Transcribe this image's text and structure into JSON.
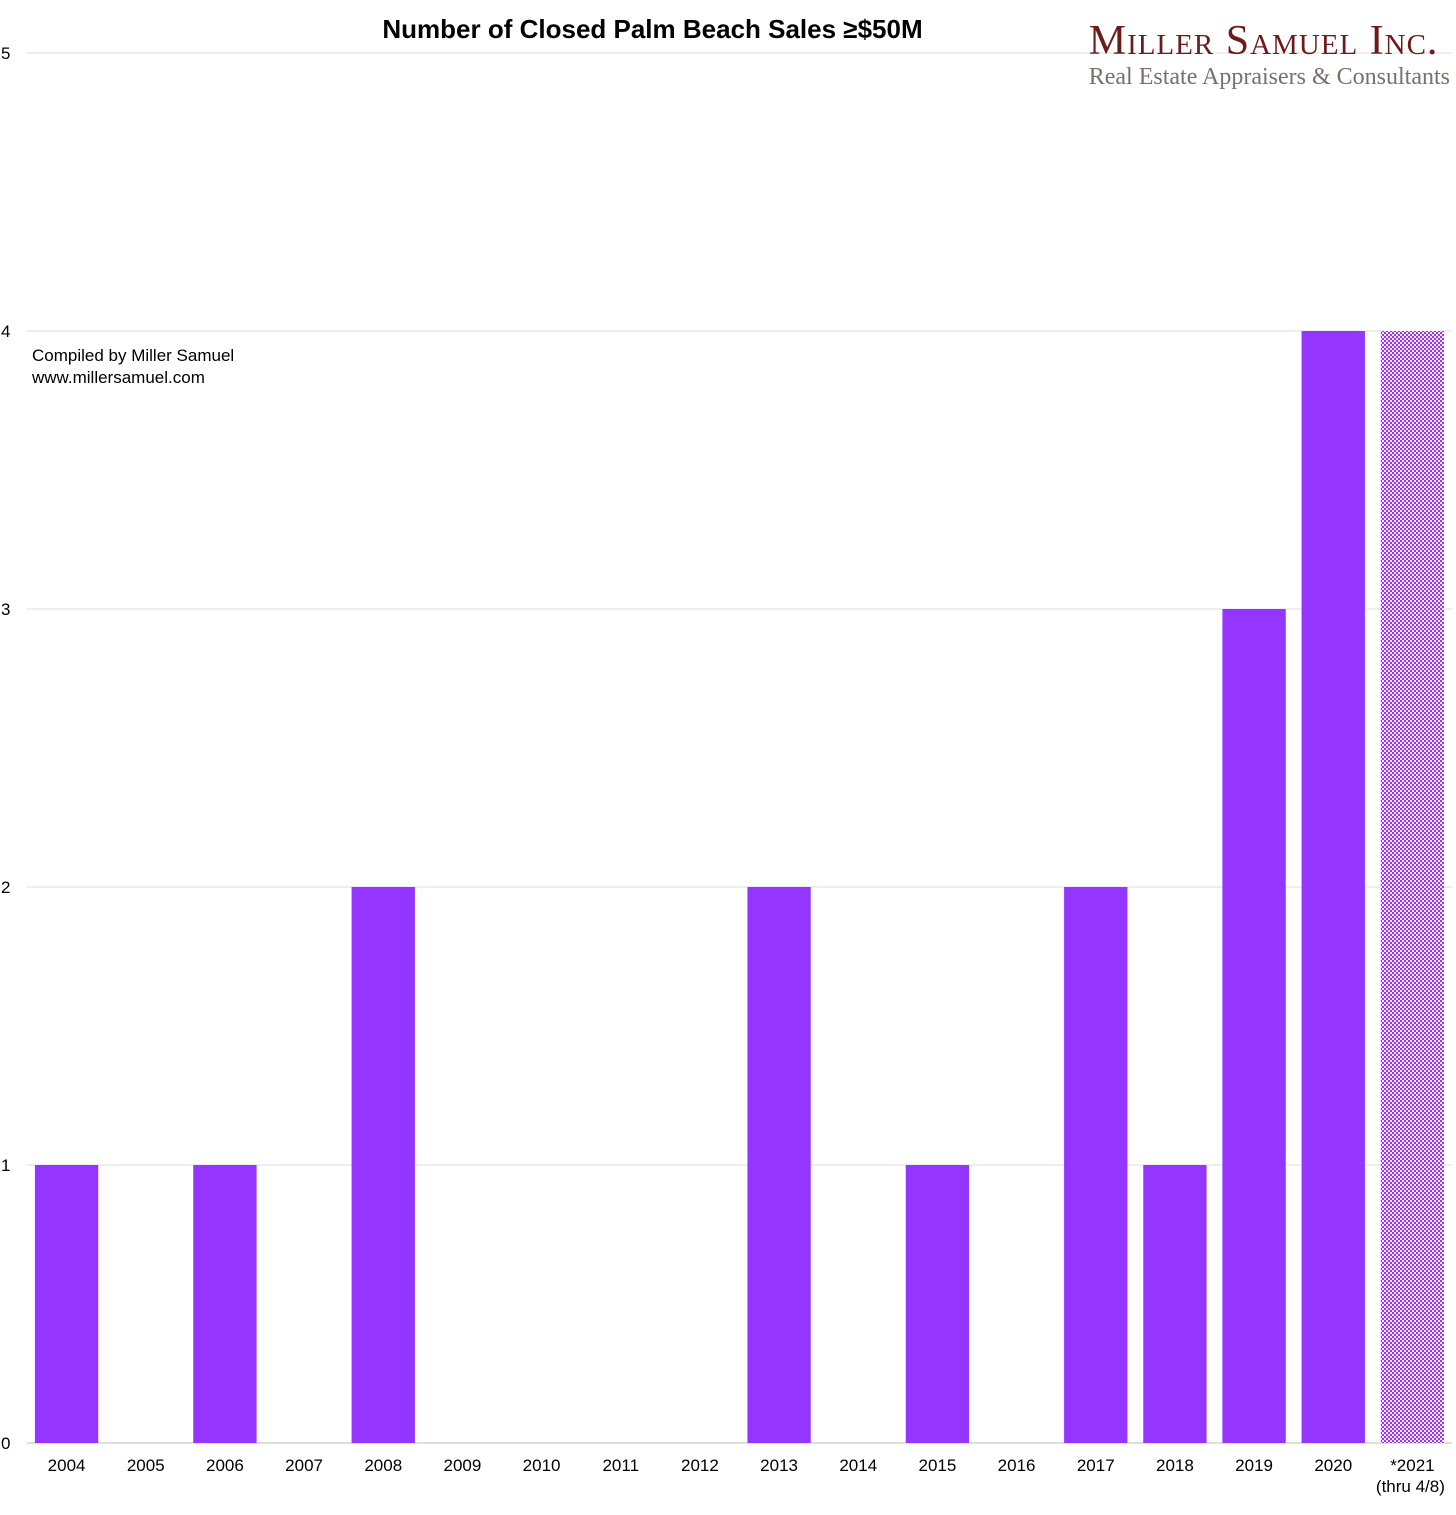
{
  "chart_data": {
    "type": "bar",
    "title": "Number of Closed Palm Beach Sales ≥$50M",
    "xlabel": "",
    "ylabel": "",
    "categories": [
      "2004",
      "2005",
      "2006",
      "2007",
      "2008",
      "2009",
      "2010",
      "2011",
      "2012",
      "2013",
      "2014",
      "2015",
      "2016",
      "2017",
      "2018",
      "2019",
      "2020",
      "*2021"
    ],
    "category_sublabels": {
      "*2021": "(thru 4/8)"
    },
    "values": [
      1,
      0,
      1,
      0,
      2,
      0,
      0,
      0,
      0,
      2,
      0,
      1,
      0,
      2,
      1,
      3,
      4,
      4
    ],
    "ylim": [
      0,
      5
    ],
    "yticks": [
      0,
      1,
      2,
      3,
      4,
      5
    ],
    "grid": true,
    "bar_color": "#9436ff",
    "partial_year_category": "*2021",
    "partial_year_style": "dotted purple fill",
    "annotations": [
      "Compiled by Miller Samuel",
      "www.millersamuel.com"
    ]
  },
  "logo": {
    "name": "Miller Samuel Inc.",
    "tagline": "Real Estate Appraisers & Consultants",
    "colors": {
      "name": "#6d1a1a",
      "tagline": "#7a6f6f"
    }
  }
}
